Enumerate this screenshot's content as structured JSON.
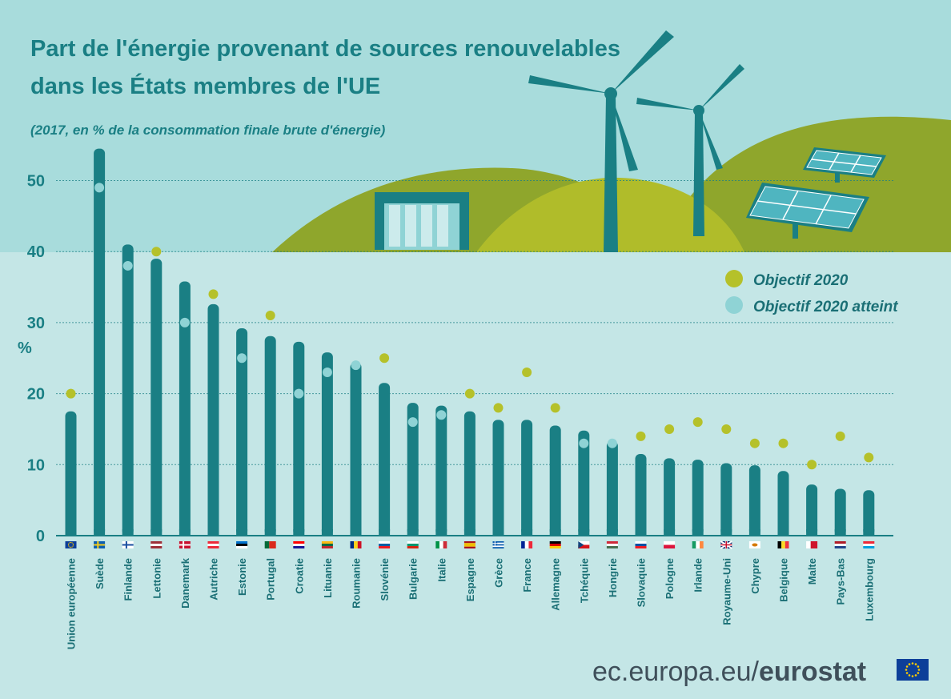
{
  "title_line1": "Part de l'énergie provenant de sources renouvelables",
  "title_line2": "dans les États membres de l'UE",
  "subtitle": "(2017, en % de la consommation finale brute d'énergie)",
  "footer": {
    "site": "ec.europa.eu/",
    "brand": "eurostat"
  },
  "colors": {
    "bar": "#1a7f84",
    "target": "#b5c12a",
    "target_met": "#8fd3d5",
    "hill": "#8fa62c",
    "background": "#c4e6e6",
    "title": "#1a7f84"
  },
  "chart_data": {
    "type": "bar",
    "title": "Part de l'énergie provenant de sources renouvelables dans les États membres de l'UE",
    "subtitle": "(2017, en % de la consommation finale brute d'énergie)",
    "ylabel": "%",
    "xlabel": "",
    "ylim": [
      0,
      55
    ],
    "yticks": [
      0,
      10,
      20,
      30,
      40,
      50
    ],
    "grid": true,
    "legend_position": "right",
    "categories": [
      "Union européenne",
      "Suède",
      "Finlande",
      "Lettonie",
      "Danemark",
      "Autriche",
      "Estonie",
      "Portugal",
      "Croatie",
      "Lituanie",
      "Roumanie",
      "Slovénie",
      "Bulgarie",
      "Italie",
      "Espagne",
      "Grèce",
      "France",
      "Allemagne",
      "Tchéquie",
      "Hongrie",
      "Slovaquie",
      "Pologne",
      "Irlande",
      "Royaume-Uni",
      "Chypre",
      "Belgique",
      "Malte",
      "Pays-Bas",
      "Luxembourg"
    ],
    "values": [
      17.5,
      54.5,
      41.0,
      39.0,
      35.8,
      32.6,
      29.2,
      28.1,
      27.3,
      25.8,
      24.4,
      21.5,
      18.7,
      18.3,
      17.5,
      16.3,
      16.3,
      15.5,
      14.8,
      13.3,
      11.5,
      10.9,
      10.7,
      10.2,
      9.9,
      9.1,
      7.2,
      6.6,
      6.4
    ],
    "targets": [
      20,
      49,
      38,
      40,
      30,
      34,
      25,
      31,
      20,
      23,
      24,
      25,
      16,
      17,
      20,
      18,
      23,
      18,
      13,
      13,
      14,
      15,
      16,
      15,
      13,
      13,
      10,
      14,
      11
    ],
    "target_met": [
      false,
      true,
      true,
      false,
      true,
      false,
      true,
      false,
      true,
      true,
      true,
      false,
      true,
      true,
      false,
      false,
      false,
      false,
      true,
      true,
      false,
      false,
      false,
      false,
      false,
      false,
      false,
      false,
      false
    ],
    "legend": [
      "Objectif 2020",
      "Objectif 2020 atteint"
    ],
    "flags": [
      {
        "type": "eu"
      },
      {
        "type": "cross",
        "colors": [
          "#0b5eb0",
          "#f5cc1b"
        ]
      },
      {
        "type": "cross",
        "colors": [
          "#ffffff",
          "#1a4fa0"
        ]
      },
      {
        "type": "h3",
        "colors": [
          "#9e3039",
          "#ffffff",
          "#9e3039"
        ]
      },
      {
        "type": "cross",
        "colors": [
          "#c8102e",
          "#ffffff"
        ]
      },
      {
        "type": "h3",
        "colors": [
          "#ed2939",
          "#ffffff",
          "#ed2939"
        ]
      },
      {
        "type": "h3",
        "colors": [
          "#0072ce",
          "#000000",
          "#ffffff"
        ]
      },
      {
        "type": "v2",
        "colors": [
          "#046a38",
          "#da291c"
        ]
      },
      {
        "type": "h3",
        "colors": [
          "#ff0000",
          "#ffffff",
          "#171796"
        ]
      },
      {
        "type": "h3",
        "colors": [
          "#fdb913",
          "#006a44",
          "#c1272d"
        ]
      },
      {
        "type": "v3",
        "colors": [
          "#002b7f",
          "#fcd116",
          "#ce1126"
        ]
      },
      {
        "type": "h3",
        "colors": [
          "#ffffff",
          "#005da4",
          "#ed1c24"
        ]
      },
      {
        "type": "h3",
        "colors": [
          "#ffffff",
          "#00966e",
          "#d62612"
        ]
      },
      {
        "type": "v3",
        "colors": [
          "#009246",
          "#ffffff",
          "#ce2b37"
        ]
      },
      {
        "type": "h3w",
        "colors": [
          "#aa151b",
          "#f1bf00",
          "#aa151b"
        ]
      },
      {
        "type": "stripes",
        "colors": [
          "#0d5eaf",
          "#ffffff"
        ]
      },
      {
        "type": "v3",
        "colors": [
          "#002395",
          "#ffffff",
          "#ed2939"
        ]
      },
      {
        "type": "h3",
        "colors": [
          "#000000",
          "#dd0000",
          "#ffce00"
        ]
      },
      {
        "type": "h2tri",
        "colors": [
          "#ffffff",
          "#d7141a",
          "#11457e"
        ]
      },
      {
        "type": "h3",
        "colors": [
          "#ce2939",
          "#ffffff",
          "#477050"
        ]
      },
      {
        "type": "h3",
        "colors": [
          "#ffffff",
          "#0b4ea2",
          "#ee1c25"
        ]
      },
      {
        "type": "h2",
        "colors": [
          "#ffffff",
          "#dc143c"
        ]
      },
      {
        "type": "v3",
        "colors": [
          "#169b62",
          "#ffffff",
          "#ff883e"
        ]
      },
      {
        "type": "uk",
        "colors": [
          "#012169",
          "#ffffff",
          "#c8102e"
        ]
      },
      {
        "type": "plain",
        "colors": [
          "#ffffff",
          "#d57800"
        ]
      },
      {
        "type": "v3",
        "colors": [
          "#000000",
          "#fdda24",
          "#ef3340"
        ]
      },
      {
        "type": "v2",
        "colors": [
          "#ffffff",
          "#cf142b"
        ]
      },
      {
        "type": "h3",
        "colors": [
          "#ae1c28",
          "#ffffff",
          "#21468b"
        ]
      },
      {
        "type": "h3",
        "colors": [
          "#ed2939",
          "#ffffff",
          "#00a1de"
        ]
      }
    ]
  }
}
